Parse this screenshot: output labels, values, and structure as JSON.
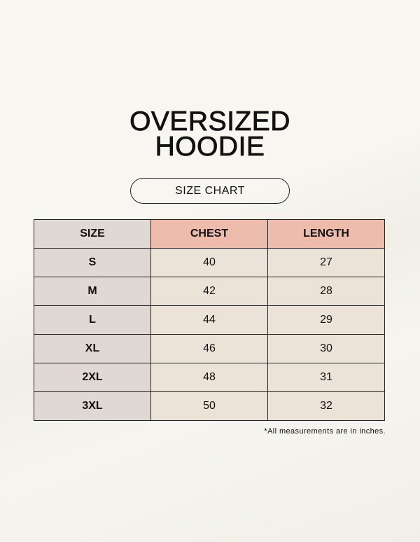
{
  "title": [
    "OVERSIZED",
    "HOODIE"
  ],
  "subtitle": "SIZE CHART",
  "colors": {
    "size_column": "#e0d8d3",
    "header_highlight": "#eebcad",
    "cell": "#ebe3d8"
  },
  "table": {
    "headers": [
      "SIZE",
      "CHEST",
      "LENGTH"
    ],
    "rows": [
      [
        "S",
        "40",
        "27"
      ],
      [
        "M",
        "42",
        "28"
      ],
      [
        "L",
        "44",
        "29"
      ],
      [
        "XL",
        "46",
        "30"
      ],
      [
        "2XL",
        "48",
        "31"
      ],
      [
        "3XL",
        "50",
        "32"
      ]
    ]
  },
  "note": "*All measurements are in inches."
}
